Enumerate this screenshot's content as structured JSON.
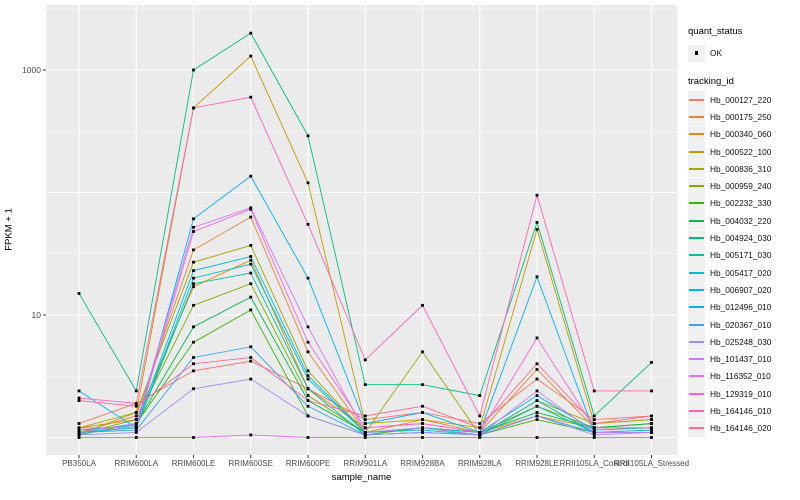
{
  "figure": {
    "background": "#FFFFFF",
    "panel_bg": "#EBEBEB",
    "grid_color": "#FFFFFF",
    "tick_color": "#333333",
    "tick_text_color": "#4D4D4D",
    "axis_title_color": "#000000",
    "legend_key_bg": "#F0F0F0",
    "point_color": "#000000"
  },
  "axes": {
    "y": {
      "title": "FPKM + 1",
      "scale": "log10",
      "tick_values": [
        10,
        1000
      ]
    },
    "x": {
      "title": "sample_name"
    }
  },
  "legend": {
    "quant": {
      "title": "quant_status",
      "items": [
        {
          "label": "OK",
          "marker": "point-icon"
        }
      ]
    },
    "tracking": {
      "title": "tracking_id"
    }
  },
  "chart_data": {
    "type": "line",
    "title": "",
    "xlabel": "sample_name",
    "ylabel": "FPKM + 1",
    "y_scale": "log10",
    "ylim": [
      0.7,
      3400
    ],
    "y_breaks": [
      10,
      1000
    ],
    "y_minor_breaks": [
      3.162,
      31.62,
      316.2,
      3162
    ],
    "grid": true,
    "legend_position": "right",
    "point_shape": "filled-square",
    "categories": [
      "PB350LA",
      "RRIM600LA",
      "RRIM600LE",
      "RRIM600SE",
      "RRIM600PE",
      "RRIM901LA",
      "RRIM928BA",
      "RRIM928LA",
      "RRIM928LE",
      "RRII105LA_Control",
      "RRII105LA_Stressed"
    ],
    "quant_status_all_points": "OK",
    "series": [
      {
        "name": "Hb_000127_220",
        "color": "#F8766D",
        "values": [
          1.3,
          1.9,
          3.5,
          4.2,
          2.5,
          1.4,
          1.6,
          1.3,
          3.0,
          1.4,
          1.5
        ]
      },
      {
        "name": "Hb_000175_250",
        "color": "#EA8331",
        "values": [
          1.1,
          1.5,
          34,
          63,
          5.0,
          1.1,
          1.4,
          1.1,
          3.6,
          1.2,
          1.3
        ]
      },
      {
        "name": "Hb_000340_060",
        "color": "#D89000",
        "values": [
          1.2,
          1.4,
          17,
          28,
          2.5,
          1.2,
          1.3,
          1.1,
          1.5,
          1.2,
          1.2
        ]
      },
      {
        "name": "Hb_000522_100",
        "color": "#C09B00",
        "values": [
          1.2,
          1.6,
          490,
          1300,
          120,
          1.3,
          1.4,
          1.2,
          50,
          1.3,
          1.4
        ]
      },
      {
        "name": "Hb_000836_310",
        "color": "#A3A500",
        "values": [
          1.07,
          1.6,
          27,
          37,
          3.5,
          1.1,
          5.0,
          1.05,
          2.0,
          1.3,
          1.4
        ]
      },
      {
        "name": "Hb_000959_240",
        "color": "#7CAE00",
        "values": [
          1.07,
          1.4,
          12,
          18,
          2.2,
          1.1,
          1.2,
          1.1,
          1.8,
          1.2,
          1.3
        ]
      },
      {
        "name": "Hb_002232_330",
        "color": "#39B600",
        "values": [
          1.05,
          1.3,
          6,
          11,
          1.5,
          1.05,
          1.2,
          1.05,
          1.4,
          1.1,
          1.1
        ]
      },
      {
        "name": "Hb_004032_220",
        "color": "#00BB4E",
        "values": [
          1.1,
          1.3,
          8,
          14,
          2.0,
          1.1,
          1.2,
          1.1,
          1.6,
          1.2,
          1.3
        ]
      },
      {
        "name": "Hb_004924_030",
        "color": "#00BF7D",
        "values": [
          15,
          2.4,
          1000,
          2000,
          290,
          2.7,
          2.7,
          2.2,
          57,
          1.5,
          4.1
        ]
      },
      {
        "name": "Hb_005171_030",
        "color": "#00C1A3",
        "values": [
          1.1,
          1.2,
          18,
          22,
          2.5,
          1.05,
          1.1,
          1.05,
          1.8,
          1.1,
          1.1
        ]
      },
      {
        "name": "Hb_005417_020",
        "color": "#00BFC4",
        "values": [
          1.1,
          1.2,
          20,
          26,
          3.0,
          1.1,
          1.15,
          1.05,
          2.0,
          1.1,
          1.15
        ]
      },
      {
        "name": "Hb_006907_020",
        "color": "#00BAE0",
        "values": [
          1.15,
          1.25,
          23,
          30,
          3.2,
          1.1,
          1.2,
          1.1,
          2.2,
          1.15,
          1.2
        ]
      },
      {
        "name": "Hb_012496_010",
        "color": "#00B0F6",
        "values": [
          2.4,
          1.2,
          61,
          136,
          20,
          1.3,
          1.6,
          1.1,
          20.5,
          1.1,
          1.1
        ]
      },
      {
        "name": "Hb_020367_010",
        "color": "#35A2FF",
        "values": [
          1.1,
          1.15,
          4.5,
          5.5,
          1.8,
          1.05,
          1.1,
          1.05,
          1.5,
          1.1,
          1.1
        ]
      },
      {
        "name": "Hb_025248_030",
        "color": "#9590FF",
        "values": [
          1.05,
          1.1,
          2.5,
          3.0,
          1.5,
          1.05,
          1.1,
          1.05,
          1.5,
          1.05,
          1.1
        ]
      },
      {
        "name": "Hb_101437_010",
        "color": "#C77CFF",
        "values": [
          1.1,
          1.3,
          52,
          75,
          8,
          1.1,
          1.2,
          1.05,
          2.4,
          1.1,
          1.1
        ]
      },
      {
        "name": "Hb_116352_010",
        "color": "#E76BF3",
        "values": [
          1.0,
          1.0,
          1.0,
          1.05,
          1.0,
          1.0,
          1.0,
          1.0,
          1.0,
          1.0,
          1.0
        ]
      },
      {
        "name": "Hb_129319_010",
        "color": "#FA62DB",
        "values": [
          1.2,
          1.2,
          48,
          73,
          6,
          1.2,
          1.3,
          1.1,
          6.5,
          1.2,
          1.2
        ]
      },
      {
        "name": "Hb_164146_010",
        "color": "#FF62BC",
        "values": [
          2.1,
          1.9,
          490,
          600,
          55,
          4.3,
          12,
          1.5,
          95,
          2.4,
          2.4
        ]
      },
      {
        "name": "Hb_164146_020",
        "color": "#FF6A98",
        "values": [
          2.0,
          1.8,
          4.0,
          4.5,
          2.0,
          1.5,
          1.8,
          1.2,
          4.0,
          1.3,
          1.5
        ]
      }
    ]
  }
}
